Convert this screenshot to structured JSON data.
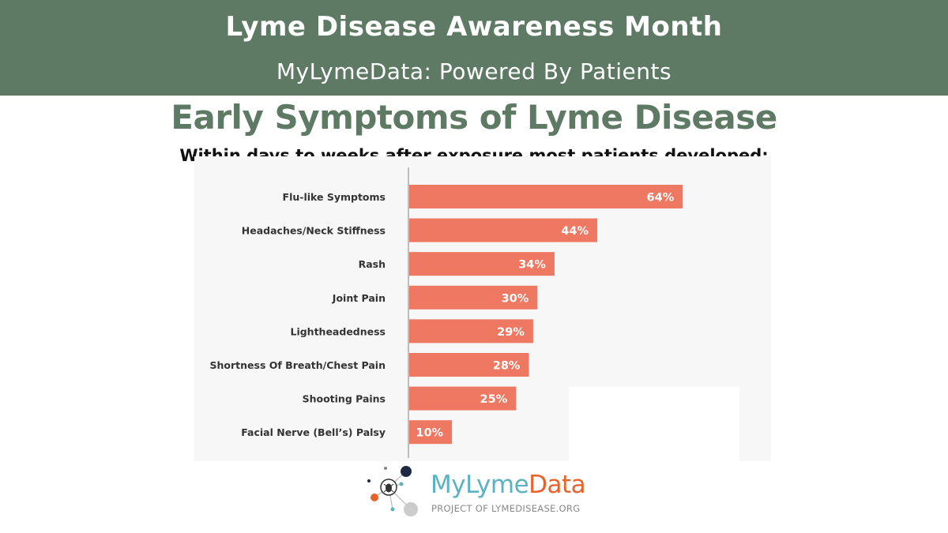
{
  "banner": {
    "title": "Lyme Disease Awareness Month",
    "subtitle": "MyLymeData: Powered By Patients"
  },
  "colors": {
    "banner_bg": "#5e7a64",
    "title_green": "#5e7a64",
    "bar": "#ee7862",
    "logo_teal": "#5bb2c2",
    "logo_orange": "#e8632c"
  },
  "chart_data": {
    "type": "bar",
    "orientation": "horizontal",
    "title": "Early Symptoms of Lyme Disease",
    "subtitle": "Within days to weeks after exposure most patients developed:",
    "categories": [
      "Flu-like Symptoms",
      "Headaches/Neck Stiffness",
      "Rash",
      "Joint Pain",
      "Lightheadedness",
      "Shortness Of Breath/Chest Pain",
      "Shooting Pains",
      "Facial Nerve (Bell’s) Palsy"
    ],
    "values": [
      64,
      44,
      34,
      30,
      29,
      28,
      25,
      10
    ],
    "value_labels": [
      "64%",
      "44%",
      "34%",
      "30%",
      "29%",
      "28%",
      "25%",
      "10%"
    ],
    "unit": "%",
    "xlim": [
      0,
      84
    ],
    "grid": false,
    "legend": "none"
  },
  "logo": {
    "word_my": "My",
    "word_lyme": "Lyme",
    "word_data": "Data",
    "tagline": "PROJECT OF LYMEDISEASE.ORG",
    "icon": "network-tick-icon"
  }
}
